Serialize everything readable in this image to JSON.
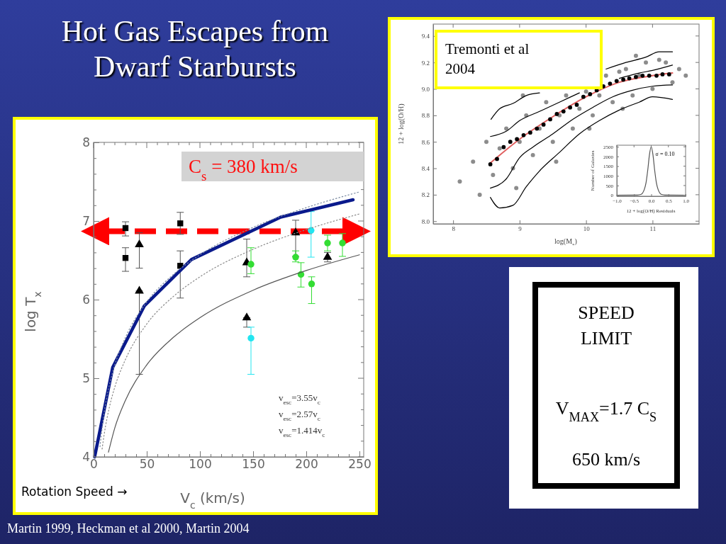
{
  "chart_data": [
    {
      "type": "scatter",
      "title": "Hot Gas Escapes from Dwarf Starbursts",
      "xlabel": "V$_{c}$ (km/s)",
      "ylabel": "log T$_{x}$",
      "xlim": [
        0,
        254
      ],
      "ylim": [
        4,
        8
      ],
      "xticks": [
        0,
        {
          "value": 10,
          "label": null
        },
        {
          "value": 20,
          "label": null
        },
        {
          "value": 30,
          "label": null
        },
        {
          "value": 40,
          "label": null
        },
        50,
        {
          "value": 60,
          "label": null
        },
        {
          "value": 70,
          "label": null
        },
        {
          "value": 80,
          "label": null
        },
        {
          "value": 90,
          "label": null
        },
        100,
        {
          "value": 110,
          "label": null
        },
        {
          "value": 120,
          "label": null
        },
        {
          "value": 130,
          "label": null
        },
        {
          "value": 140,
          "label": null
        },
        150,
        {
          "value": 160,
          "label": null
        },
        {
          "value": 170,
          "label": null
        },
        {
          "value": 180,
          "label": null
        },
        {
          "value": 190,
          "label": null
        },
        200,
        {
          "value": 210,
          "label": null
        },
        {
          "value": 220,
          "label": null
        },
        {
          "value": 230,
          "label": null
        },
        {
          "value": 240,
          "label": null
        },
        250
      ],
      "yticks": [
        4,
        {
          "value": 4.2,
          "label": null
        },
        {
          "value": 4.4,
          "label": null
        },
        {
          "value": 4.6,
          "label": null
        },
        {
          "value": 4.8,
          "label": null
        },
        5,
        {
          "value": 5.2,
          "label": null
        },
        {
          "value": 5.4,
          "label": null
        },
        {
          "value": 5.6,
          "label": null
        },
        {
          "value": 5.8,
          "label": null
        },
        6,
        {
          "value": 6.2,
          "label": null
        },
        {
          "value": 6.4,
          "label": null
        },
        {
          "value": 6.6,
          "label": null
        },
        {
          "value": 6.8,
          "label": null
        },
        7,
        {
          "value": 7.2,
          "label": null
        },
        {
          "value": 7.4,
          "label": null
        },
        {
          "value": 7.6,
          "label": null
        },
        {
          "value": 7.8,
          "label": null
        },
        8
      ],
      "series": [
        {
          "type": "scatter",
          "marker": "square",
          "color": "#000000",
          "x": [
            30,
            81.5
          ],
          "values": [
            6.91,
            6.97
          ],
          "errors": [
            [
              6.81,
              6.99
            ],
            [
              6.83,
              7.11
            ]
          ]
        },
        {
          "type": "scatter",
          "marker": "square",
          "color": "#000000",
          "x": [
            30,
            81.5
          ],
          "values": [
            6.53,
            6.43
          ],
          "errors": [
            [
              6.36,
              6.66
            ],
            [
              6.02,
              6.62
            ]
          ]
        },
        {
          "type": "scatter",
          "marker": "triangle",
          "color": "#000000",
          "x": [
            43,
            144,
            190,
            220
          ],
          "values": [
            6.7,
            6.47,
            6.85,
            6.54
          ],
          "errors": [
            [
              6.4,
              6.85
            ],
            [
              6.29,
              6.77
            ],
            [
              6.55,
              7.01
            ],
            [
              6.48,
              6.6
            ]
          ]
        },
        {
          "type": "scatter",
          "marker": "triangle",
          "color": "#000000",
          "x": [
            43,
            144
          ],
          "values": [
            6.11,
            5.77
          ],
          "errors": [
            [
              5.05,
              6.11
            ],
            [
              5.65,
              5.77
            ]
          ]
        },
        {
          "type": "scatter",
          "marker": "circle",
          "color": "#33dd33",
          "x": [
            148,
            190,
            195,
            205,
            220,
            234
          ],
          "values": [
            6.45,
            6.54,
            6.32,
            6.2,
            6.72,
            6.72
          ],
          "errors": [
            [
              6.33,
              6.66
            ],
            [
              6.48,
              6.62
            ],
            [
              6.16,
              6.47
            ],
            [
              5.95,
              6.29
            ],
            [
              6.62,
              6.82
            ],
            [
              6.55,
              6.84
            ]
          ]
        },
        {
          "type": "scatter",
          "marker": "circle",
          "color": "#22e5f0",
          "x": [
            148,
            204.5
          ],
          "values": [
            5.51,
            6.88
          ],
          "errors": [
            [
              5.05,
              5.65
            ],
            [
              6.54,
              7.12
            ]
          ]
        },
        {
          "type": "line",
          "line_style": "solid",
          "color": "#0a1a8c",
          "x": [
            1,
            18,
            47.7,
            92,
            176,
            244
          ],
          "values": [
            4.0,
            5.14,
            5.92,
            6.51,
            7.05,
            7.27
          ]
        },
        {
          "type": "line",
          "line_style": "dotted",
          "color": "#7a8aa0",
          "x": [
            6,
            10,
            15,
            20,
            30,
            50,
            75,
            100,
            150,
            200,
            250
          ],
          "values": [
            4.13,
            4.57,
            4.92,
            5.17,
            5.52,
            5.97,
            6.32,
            6.57,
            6.92,
            7.17,
            7.37
          ]
        },
        {
          "type": "line",
          "line_style": "dotted",
          "color": "#888888",
          "x": [
            8,
            10,
            15,
            20,
            30,
            50,
            75,
            100,
            150,
            200,
            250
          ],
          "values": [
            4.1,
            4.29,
            4.64,
            4.89,
            5.24,
            5.69,
            6.04,
            6.29,
            6.64,
            6.89,
            7.09
          ]
        },
        {
          "type": "line",
          "line_style": "solid",
          "color": "#555555",
          "x": [
            14,
            20,
            30,
            50,
            75,
            100,
            150,
            200,
            250
          ],
          "values": [
            4.06,
            4.37,
            4.72,
            5.17,
            5.52,
            5.77,
            6.12,
            6.37,
            6.57
          ]
        }
      ],
      "ref_lines": [
        {
          "axis": "y",
          "value": 6.87,
          "color": "#ff0000",
          "line_style": "dashed"
        }
      ],
      "annotations": [
        "C$_{s}$ = 380 km/s",
        "Rotation Speed →",
        "v$_{esc}$=3.55v$_{c}$",
        "v$_{esc}$=2.57v$_{c}$",
        "v$_{esc}$=1.414v$_{c}$",
        "Martin 1999, Heckman et al 2000, Martin 2004"
      ]
    },
    {
      "type": "scatter",
      "xlabel": "log(M$_{*}$)",
      "ylabel": "12 + log(O/H)",
      "xlim": [
        7.7,
        11.7
      ],
      "ylim": [
        7.98,
        9.49
      ],
      "xticks": [
        8,
        9,
        10,
        11
      ],
      "yticks": [
        {
          "value": 8,
          "label": "8.0"
        },
        {
          "value": 8.2,
          "label": "8.2"
        },
        {
          "value": 8.4,
          "label": "8.4"
        },
        {
          "value": 8.6,
          "label": "8.6"
        },
        {
          "value": 8.8,
          "label": "8.8"
        },
        {
          "value": 9,
          "label": "9.0"
        },
        {
          "value": 9.2,
          "label": "9.2"
        },
        {
          "value": 9.4,
          "label": "9.4"
        }
      ],
      "series": [
        {
          "type": "scatter",
          "marker": "circle",
          "color": "#8c8c8c",
          "x": [
            8.1,
            8.3,
            8.4,
            8.5,
            8.6,
            8.7,
            8.8,
            8.9,
            9.0,
            9.1,
            9.2,
            9.3,
            9.4,
            9.5,
            9.6,
            9.7,
            9.8,
            9.9,
            10.0,
            10.1,
            10.2,
            10.3,
            10.4,
            10.5,
            10.6,
            10.7,
            10.8,
            10.9,
            11.0,
            11.1,
            11.2,
            11.3,
            11.4,
            11.5,
            9.05,
            9.55,
            10.05,
            10.55,
            8.95,
            10.75
          ],
          "values": [
            8.3,
            8.45,
            8.2,
            8.6,
            8.35,
            8.55,
            8.7,
            8.4,
            8.6,
            8.8,
            8.5,
            8.7,
            8.9,
            8.6,
            8.8,
            8.95,
            8.7,
            8.85,
            8.98,
            8.8,
            8.95,
            9.1,
            8.9,
            9.13,
            9.15,
            8.95,
            9.1,
            9.2,
            9.0,
            9.22,
            9.2,
            9.05,
            9.15,
            9.1,
            8.95,
            8.45,
            8.7,
            8.85,
            8.25,
            9.25
          ]
        },
        {
          "type": "line",
          "line_style": "solid",
          "color": "#000000",
          "x": [
            8.57,
            8.7,
            8.9,
            9.1,
            9.3,
            9.4,
            9.6,
            9.9,
            10.3,
            10.6,
            10.9,
            11.1,
            11.3
          ],
          "values": [
            8.77,
            8.85,
            8.89,
            8.95,
            8.97,
            null,
            null,
            null,
            9.15,
            9.2,
            9.24,
            9.28,
            9.28
          ]
        },
        {
          "type": "line",
          "line_style": "solid",
          "color": "#000000",
          "x": [
            8.56,
            8.8,
            9.0,
            9.3,
            9.6,
            9.9,
            10.2,
            10.5,
            10.8,
            11.0,
            11.3
          ],
          "values": [
            8.64,
            8.68,
            8.76,
            8.83,
            8.9,
            8.97,
            null,
            9.08,
            9.12,
            9.14,
            9.18
          ]
        },
        {
          "type": "line",
          "line_style": "solid",
          "color": "#000000",
          "x": [
            8.56,
            8.8,
            9.0,
            9.2,
            9.5,
            9.8,
            10.1,
            10.4,
            10.7,
            11.0,
            11.3
          ],
          "values": [
            8.25,
            8.32,
            8.48,
            8.56,
            8.66,
            8.77,
            8.86,
            8.94,
            8.99,
            9.02,
            9.03
          ]
        },
        {
          "type": "line",
          "line_style": "solid",
          "color": "#000000",
          "x": [
            8.56,
            8.7,
            8.9,
            9.1,
            9.3,
            9.6,
            9.9,
            10.2,
            10.5,
            10.8,
            11.0,
            11.3
          ],
          "values": [
            8.18,
            8.1,
            8.12,
            8.26,
            8.38,
            8.52,
            8.66,
            8.76,
            8.84,
            8.9,
            8.94,
            8.92
          ]
        },
        {
          "type": "line",
          "line_style": "solid",
          "color": "#e06060",
          "x": [
            8.56,
            9.0,
            9.5,
            10.0,
            10.5,
            11.0,
            11.3
          ],
          "values": [
            8.44,
            8.62,
            8.79,
            8.94,
            9.05,
            9.1,
            9.12
          ]
        },
        {
          "type": "scatter",
          "marker": "circle",
          "color": "#000000",
          "x": [
            8.56,
            8.66,
            8.76,
            8.86,
            8.96,
            9.06,
            9.16,
            9.26,
            9.36,
            9.46,
            9.56,
            9.66,
            9.76,
            9.86,
            9.96,
            10.06,
            10.16,
            10.26,
            10.36,
            10.46,
            10.56,
            10.65,
            10.75,
            10.85,
            10.95,
            11.06,
            11.15,
            11.25
          ],
          "values": [
            8.43,
            8.47,
            8.56,
            8.6,
            8.62,
            8.65,
            8.67,
            8.7,
            8.73,
            8.77,
            8.81,
            8.83,
            8.86,
            8.88,
            8.94,
            8.96,
            8.99,
            9.02,
            9.04,
            9.06,
            9.07,
            9.08,
            9.09,
            9.1,
            9.1,
            9.1,
            9.11,
            9.11
          ]
        }
      ],
      "annotations": [
        "Tremonti et al 2004"
      ]
    },
    {
      "type": "line",
      "xlabel": "12 + log(O/H) Residuals",
      "ylabel": "Number of Galaxies",
      "xlim": [
        -1,
        1
      ],
      "ylim": [
        -50,
        2580
      ],
      "xticks": [
        {
          "value": -1,
          "label": "−1.0"
        },
        {
          "value": -0.5,
          "label": "−0.5"
        },
        {
          "value": 0,
          "label": "0.0"
        },
        {
          "value": 0.5,
          "label": "0.5"
        },
        {
          "value": 1,
          "label": "1.0"
        }
      ],
      "yticks": [
        0,
        500,
        1000,
        1500,
        2000,
        2500
      ],
      "color": "#555555",
      "x": [
        -1,
        -0.4,
        -0.3,
        -0.2,
        -0.15,
        -0.1,
        -0.05,
        0,
        0.05,
        0.1,
        0.15,
        0.2,
        0.3,
        0.4,
        1
      ],
      "values": [
        0,
        10,
        40,
        300,
        650,
        1300,
        2100,
        2500,
        2100,
        1300,
        650,
        300,
        40,
        10,
        0
      ],
      "annotations": [
        "σ = 0.10"
      ]
    },
    {
      "type": "other",
      "title": "SPEED LIMIT",
      "annotations": [
        "V$_{MAX}$=1.7 C$_{S}$",
        "650 km/s"
      ]
    }
  ]
}
